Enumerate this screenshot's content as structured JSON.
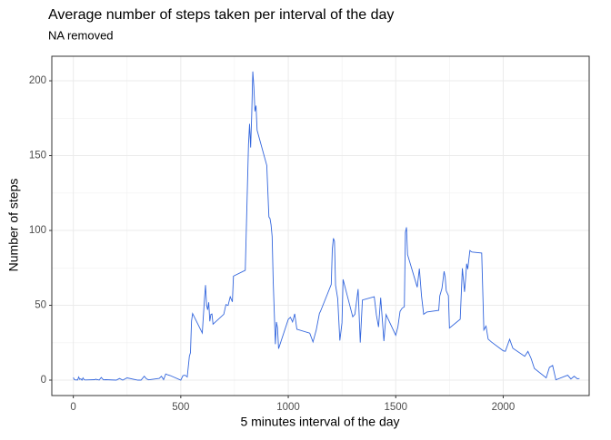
{
  "chart_data": {
    "type": "line",
    "title": "Average number of steps taken per interval of the day",
    "subtitle": "NA removed",
    "x_label": "5 minutes interval of the day",
    "y_label": "Number of steps",
    "x": [
      0,
      5,
      10,
      15,
      20,
      25,
      30,
      35,
      40,
      45,
      50,
      55,
      100,
      105,
      110,
      115,
      120,
      130,
      140,
      150,
      200,
      215,
      230,
      250,
      300,
      315,
      330,
      340,
      350,
      400,
      410,
      420,
      430,
      440,
      450,
      500,
      510,
      520,
      530,
      540,
      545,
      550,
      555,
      600,
      610,
      615,
      620,
      625,
      630,
      635,
      640,
      645,
      650,
      700,
      710,
      720,
      730,
      740,
      745,
      800,
      810,
      815,
      820,
      825,
      830,
      835,
      840,
      845,
      850,
      855,
      900,
      910,
      915,
      920,
      925,
      930,
      935,
      940,
      945,
      950,
      955,
      1000,
      1010,
      1020,
      1030,
      1040,
      1100,
      1115,
      1130,
      1145,
      1150,
      1200,
      1205,
      1210,
      1215,
      1220,
      1230,
      1240,
      1250,
      1255,
      1300,
      1310,
      1325,
      1335,
      1345,
      1400,
      1410,
      1420,
      1430,
      1445,
      1455,
      1500,
      1510,
      1520,
      1530,
      1540,
      1545,
      1550,
      1555,
      1600,
      1610,
      1620,
      1630,
      1645,
      1700,
      1705,
      1715,
      1725,
      1730,
      1735,
      1745,
      1750,
      1800,
      1810,
      1820,
      1825,
      1830,
      1835,
      1845,
      1850,
      1855,
      1900,
      1910,
      1920,
      1930,
      1945,
      2000,
      2010,
      2030,
      2045,
      2100,
      2115,
      2130,
      2145,
      2200,
      2215,
      2230,
      2245,
      2300,
      2315,
      2330,
      2345,
      2355
    ],
    "series": [
      {
        "name": "steps",
        "color": "#3366dd",
        "values": [
          1.7,
          0.3,
          0.1,
          0.2,
          0.1,
          2.1,
          0.5,
          0.9,
          0,
          1.5,
          0.3,
          0.1,
          0.3,
          0.7,
          0.2,
          0.3,
          0,
          1.8,
          0.2,
          0.3,
          0,
          1.1,
          0,
          1.5,
          0,
          0,
          2.6,
          0.9,
          0.2,
          1.2,
          2.6,
          0.3,
          4.1,
          3.5,
          3.1,
          0,
          3,
          3.3,
          2.1,
          16,
          18.3,
          39.5,
          44.5,
          31.5,
          53.8,
          63.5,
          50,
          47,
          52,
          39.3,
          44,
          44.2,
          37.4,
          44,
          50.5,
          49.9,
          55.7,
          52.3,
          69.5,
          73.4,
          129.4,
          157.5,
          171.2,
          155.4,
          177.3,
          206.2,
          195.9,
          179.6,
          183.4,
          167,
          143.5,
          109,
          108,
          103.7,
          96,
          66,
          45,
          24,
          38.8,
          34.9,
          21,
          40.6,
          42,
          38.9,
          44.3,
          34,
          31.4,
          25.5,
          33.4,
          44.6,
          46,
          63.9,
          87.6,
          94.8,
          92.8,
          63.4,
          54.5,
          26.5,
          38.3,
          67.3,
          42.3,
          44,
          60.8,
          25.1,
          53.5,
          55.7,
          43.6,
          35.5,
          55.1,
          26.1,
          43.8,
          30,
          35.5,
          45.9,
          48.1,
          49,
          98.7,
          102.1,
          83.9,
          62.1,
          74.5,
          56.2,
          44,
          45.5,
          46.6,
          56.3,
          61.2,
          72.7,
          68.9,
          59.7,
          56.5,
          34.8,
          40.7,
          74.7,
          59,
          67.8,
          77.8,
          74.2,
          86.6,
          86,
          85.6,
          84.9,
          33.5,
          36.1,
          27.4,
          25.5,
          19.6,
          19.3,
          27.3,
          21.3,
          15.9,
          19.2,
          14.4,
          7.8,
          1.5,
          8.5,
          9.8,
          0.2,
          3.3,
          0.8,
          2.6,
          0.9,
          1.1
        ]
      }
    ],
    "xlim": [
      -100,
      2400
    ],
    "xticks": [
      0,
      500,
      1000,
      1500,
      2000
    ],
    "ylim": [
      -10.3,
      216.4
    ],
    "yticks": [
      0,
      50,
      100,
      150,
      200
    ],
    "grid": true
  }
}
